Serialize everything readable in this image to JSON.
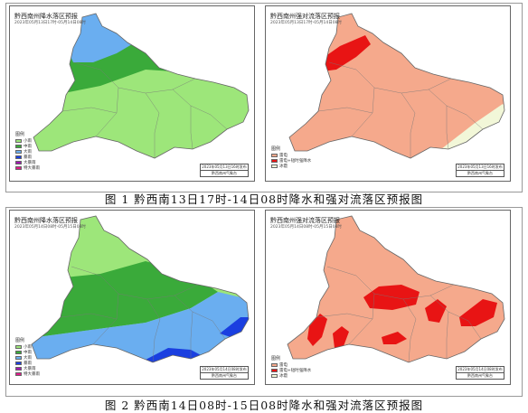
{
  "figures": [
    {
      "caption": "图 1 黔西南13日17时-14日08时降水和强对流落区预报图",
      "rain_panel": {
        "title": "黔西南州降水落区预报",
        "subtitle": "2023年05月13日17时-05月14日08时",
        "legend_title": "图例",
        "legend_items": [
          "小雨",
          "中雨",
          "大雨",
          "暴雨",
          "大暴雨",
          "特大暴雨"
        ],
        "stamp_date": "2023年05月13日16时发布",
        "stamp_org": "黔西南州气象台"
      },
      "convection_panel": {
        "title": "黔西南州强对流落区预报",
        "subtitle": "2023年05月13日17时-05月14日08时",
        "legend_title": "图例",
        "legend_items": [
          "雷电",
          "雷电+短时强降水",
          "冰雹"
        ],
        "stamp_date": "2023年05月13日16时发布",
        "stamp_org": "黔西南州气象台"
      }
    },
    {
      "caption": "图 2 黔西南14日08时-15日08时降水和强对流落区预报图",
      "rain_panel": {
        "title": "黔西南州降水落区预报",
        "subtitle": "2023年05月14日08时-05月15日08时",
        "legend_title": "图例",
        "legend_items": [
          "小雨",
          "中雨",
          "大雨",
          "暴雨",
          "大暴雨",
          "特大暴雨"
        ],
        "stamp_date": "2023年05月14日08时发布",
        "stamp_org": "黔西南州气象台"
      },
      "convection_panel": {
        "title": "黔西南州强对流落区预报",
        "subtitle": "2023年05月14日08时-05月15日08时",
        "legend_title": "图例",
        "legend_items": [
          "雷电",
          "雷电+短时强降水",
          "冰雹"
        ],
        "stamp_date": "2023年05月14日08时发布",
        "stamp_org": "黔西南州气象台"
      }
    }
  ],
  "colors": {
    "light_rain": "#9de67a",
    "moderate_rain": "#3aaa3a",
    "heavy_rain": "#6aaef0",
    "rainstorm": "#1a3fe0",
    "big_rainstorm": "#a01ab0",
    "extreme_rainstorm": "#e01a8a",
    "thunder": "#f5a98c",
    "thunder_heavy_rain": "#e81414",
    "hail": "#f2f7d8"
  }
}
